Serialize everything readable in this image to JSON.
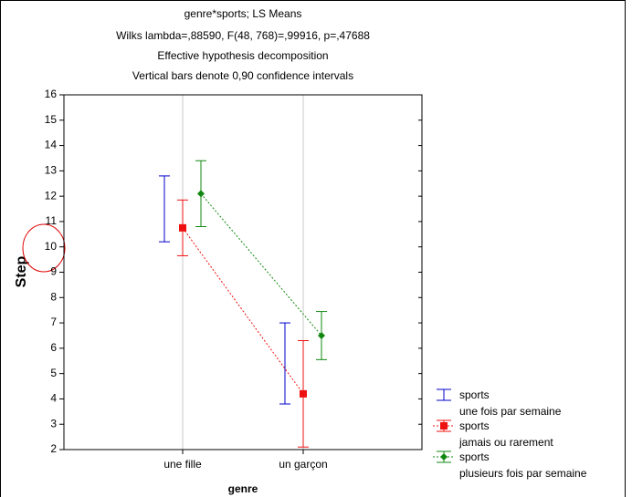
{
  "chart_data": {
    "type": "errorbar",
    "title": "genre*sports; LS Means",
    "subtitle": [
      "Wilks lambda=,88590, F(48, 768)=,99916, p=,47688",
      "Effective hypothesis decomposition",
      "Vertical bars denote 0,90 confidence intervals"
    ],
    "x_label": "genre",
    "y_label": "Step",
    "categories": [
      "une fille",
      "un garçon"
    ],
    "ylim": [
      2,
      16
    ],
    "yticks": [
      2,
      3,
      4,
      5,
      6,
      7,
      8,
      9,
      10,
      11,
      12,
      13,
      14,
      15,
      16
    ],
    "grid": true,
    "series": [
      {
        "name": "sports",
        "label": "une fois par semaine",
        "color": "#0000cc",
        "marker": "none",
        "connect": false,
        "values": [
          11.5,
          5.4
        ],
        "errors": [
          1.3,
          1.6
        ]
      },
      {
        "name": "sports",
        "label": "jamais ou rarement",
        "color": "#ee1111",
        "marker": "square",
        "connect": true,
        "values": [
          10.75,
          4.2
        ],
        "errors": [
          1.1,
          2.1
        ]
      },
      {
        "name": "sports",
        "label": "plusieurs fois par semaine",
        "color": "#118811",
        "marker": "diamond",
        "connect": true,
        "values": [
          12.1,
          6.5
        ],
        "errors": [
          1.3,
          0.95
        ]
      }
    ]
  }
}
